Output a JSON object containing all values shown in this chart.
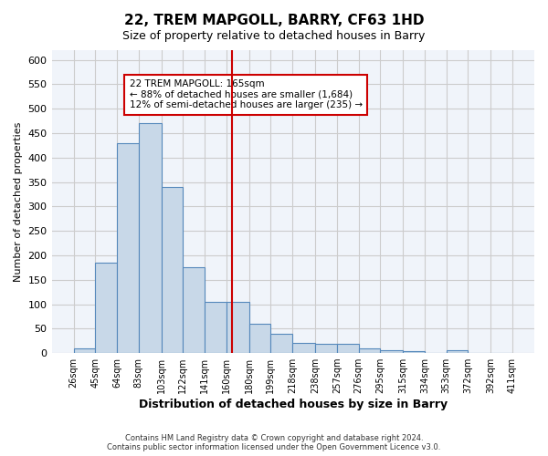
{
  "title": "22, TREM MAPGOLL, BARRY, CF63 1HD",
  "subtitle": "Size of property relative to detached houses in Barry",
  "xlabel": "Distribution of detached houses by size in Barry",
  "ylabel": "Number of detached properties",
  "footer_line1": "Contains HM Land Registry data © Crown copyright and database right 2024.",
  "footer_line2": "Contains public sector information licensed under the Open Government Licence v3.0.",
  "annotation_line1": "22 TREM MAPGOLL: 165sqm",
  "annotation_line2": "← 88% of detached houses are smaller (1,684)",
  "annotation_line3": "12% of semi-detached houses are larger (235) →",
  "property_size": 165,
  "bar_color": "#c8d8e8",
  "bar_edge_color": "#5588bb",
  "vline_color": "#cc0000",
  "grid_color": "#cccccc",
  "background_color": "#f0f4fa",
  "bins": [
    26,
    45,
    64,
    83,
    103,
    122,
    141,
    160,
    180,
    199,
    218,
    238,
    257,
    276,
    295,
    315,
    334,
    353,
    372,
    392,
    411
  ],
  "bin_labels": [
    "26sqm",
    "45sqm",
    "64sqm",
    "83sqm",
    "103sqm",
    "122sqm",
    "141sqm",
    "160sqm",
    "180sqm",
    "199sqm",
    "218sqm",
    "238sqm",
    "257sqm",
    "276sqm",
    "295sqm",
    "315sqm",
    "334sqm",
    "353sqm",
    "372sqm",
    "392sqm",
    "411sqm"
  ],
  "counts": [
    10,
    185,
    430,
    470,
    340,
    175,
    105,
    105,
    60,
    40,
    20,
    18,
    18,
    10,
    5,
    3,
    1,
    5,
    1,
    1
  ],
  "ylim": [
    0,
    620
  ],
  "yticks": [
    0,
    50,
    100,
    150,
    200,
    250,
    300,
    350,
    400,
    450,
    500,
    550,
    600
  ]
}
